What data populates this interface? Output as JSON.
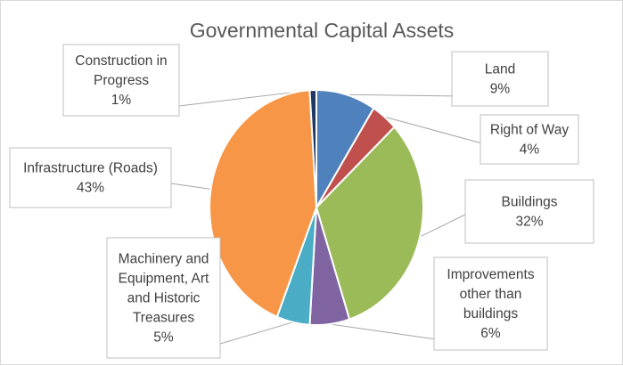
{
  "chart_data": {
    "type": "pie",
    "title": "Governmental Capital Assets",
    "slices": [
      {
        "name": "Land",
        "value": 9,
        "label": "9%",
        "color": "#4f81bd"
      },
      {
        "name": "Right of Way",
        "value": 4,
        "label": "4%",
        "color": "#c0504d"
      },
      {
        "name": "Buildings",
        "value": 32,
        "label": "32%",
        "color": "#9bbb59"
      },
      {
        "name": "Improvements other than buildings",
        "value": 6,
        "label": "6%",
        "color": "#8064a2"
      },
      {
        "name": "Machinery and Equipment, Art and Historic Treasures",
        "value": 5,
        "label": "5%",
        "color": "#4bacc6"
      },
      {
        "name": "Infrastructure (Roads)",
        "value": 43,
        "label": "43%",
        "color": "#f79646"
      },
      {
        "name": "Construction in Progress",
        "value": 1,
        "label": "1%",
        "color": "#1f3864"
      }
    ]
  }
}
